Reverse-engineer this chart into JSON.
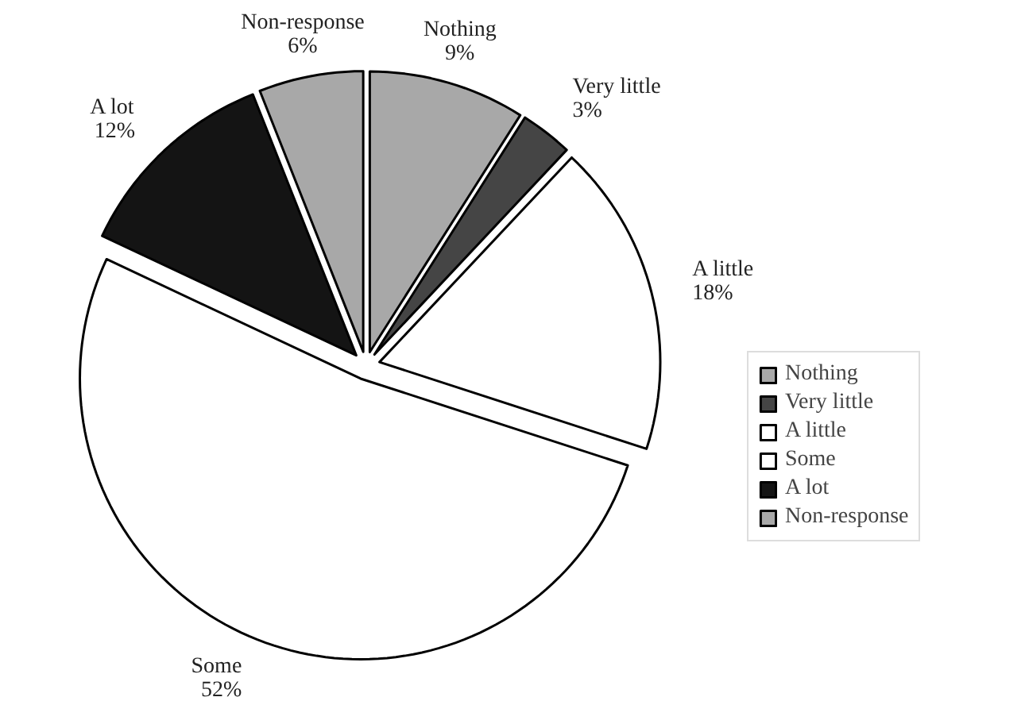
{
  "chart_data": {
    "type": "pie",
    "categories": [
      "Nothing",
      "Very little",
      "A little",
      "Some",
      "A lot",
      "Non-response"
    ],
    "values": [
      9,
      3,
      18,
      52,
      12,
      6
    ],
    "value_labels": [
      "9%",
      "3%",
      "18%",
      "52%",
      "12%",
      "6%"
    ],
    "colors": [
      "#a8a8a8",
      "#454545",
      "#ffffff",
      "#ffffff",
      "#141414",
      "#a8a8a8"
    ],
    "legend": "right"
  }
}
